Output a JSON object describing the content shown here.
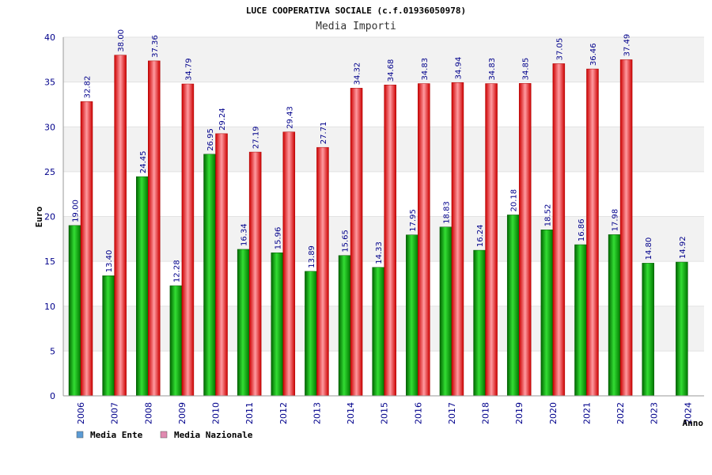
{
  "chart_data": {
    "type": "bar",
    "title": "LUCE COOPERATIVA SOCIALE (c.f.01936050978)",
    "subtitle": "Media Importi",
    "ylabel": "Euro",
    "xlabel": "Anno",
    "ylim": [
      0,
      40
    ],
    "yticks": [
      0,
      5,
      10,
      15,
      20,
      25,
      30,
      35,
      40
    ],
    "grid": "horizontal alternating bands",
    "legend_position": "bottom-left",
    "categories": [
      "2006",
      "2007",
      "2008",
      "2009",
      "2010",
      "2011",
      "2012",
      "2013",
      "2014",
      "2015",
      "2016",
      "2017",
      "2018",
      "2019",
      "2020",
      "2021",
      "2022",
      "2023",
      "2024"
    ],
    "series": [
      {
        "name": "Media Ente",
        "color": "#00aa00",
        "legend_color": "#5b9bd5",
        "values": [
          19.0,
          13.4,
          24.45,
          12.28,
          26.95,
          16.34,
          15.96,
          13.89,
          15.65,
          14.33,
          17.95,
          18.83,
          16.24,
          20.18,
          18.52,
          16.86,
          17.98,
          14.8,
          14.92
        ],
        "labels": [
          "19.00",
          "13.40",
          "24.45",
          "12.28",
          "26.95",
          "16.34",
          "15.96",
          "13.89",
          "15.65",
          "14.33",
          "17.95",
          "18.83",
          "16.24",
          "20.18",
          "18.52",
          "16.86",
          "17.98",
          "14.80",
          "14.92"
        ]
      },
      {
        "name": "Media Nazionale",
        "color": "#ee2222",
        "legend_color": "#e08ab0",
        "values": [
          32.82,
          38.0,
          37.36,
          34.79,
          29.24,
          27.19,
          29.43,
          27.71,
          34.32,
          34.68,
          34.83,
          34.94,
          34.83,
          34.85,
          37.05,
          36.46,
          37.49,
          null,
          null
        ],
        "labels": [
          "32.82",
          "38.00",
          "37.36",
          "34.79",
          "29.24",
          "27.19",
          "29.43",
          "27.71",
          "34.32",
          "34.68",
          "34.83",
          "34.94",
          "34.83",
          "34.85",
          "37.05",
          "36.46",
          "37.49",
          "",
          ""
        ]
      }
    ]
  }
}
